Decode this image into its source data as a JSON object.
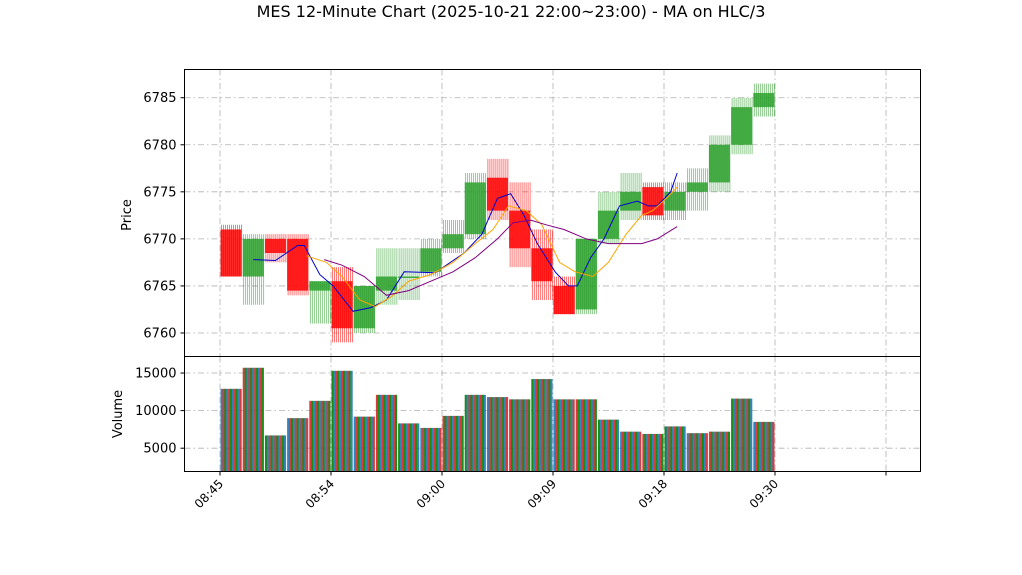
{
  "chart_data": {
    "type": "candlestick",
    "title": "MES 12-Minute Chart (2025-10-21 22:00~23:00) - MA on HLC/3",
    "price_panel": {
      "ylabel": "Price",
      "ylim": [
        6757.5,
        6788.0
      ],
      "yticks": [
        6760,
        6765,
        6770,
        6775,
        6780,
        6785
      ],
      "grid": true
    },
    "volume_panel": {
      "ylabel": "Volume",
      "ylim": [
        1900,
        17200
      ],
      "yticks": [
        5000,
        10000,
        15000
      ],
      "grid": true
    },
    "x_ticks": [
      "08:45",
      "08:54",
      "09:00",
      "09:09",
      "09:18",
      "09:30",
      ""
    ],
    "up_color": "#2ca02c",
    "down_color": "#ff0000",
    "volume_colors": [
      "#1f77b4",
      "#d62728",
      "#008000"
    ],
    "candles": [
      {
        "open": 6771.0,
        "high": 6771.5,
        "low": 6766.0,
        "close": 6766.0,
        "volume": 12900
      },
      {
        "open": 6766.0,
        "high": 6770.5,
        "low": 6763.0,
        "close": 6770.0,
        "volume": 15700
      },
      {
        "open": 6770.0,
        "high": 6770.5,
        "low": 6767.5,
        "close": 6768.5,
        "volume": 6700
      },
      {
        "open": 6770.0,
        "high": 6770.5,
        "low": 6764.0,
        "close": 6764.5,
        "volume": 9000
      },
      {
        "open": 6764.5,
        "high": 6765.5,
        "low": 6761.0,
        "close": 6765.5,
        "volume": 11300
      },
      {
        "open": 6765.5,
        "high": 6767.0,
        "low": 6759.0,
        "close": 6760.5,
        "volume": 15300
      },
      {
        "open": 6760.5,
        "high": 6765.0,
        "low": 6760.0,
        "close": 6765.0,
        "volume": 9200
      },
      {
        "open": 6764.5,
        "high": 6769.0,
        "low": 6763.0,
        "close": 6766.0,
        "volume": 12100
      },
      {
        "open": 6766.0,
        "high": 6769.0,
        "low": 6763.5,
        "close": 6766.0,
        "volume": 8300
      },
      {
        "open": 6766.5,
        "high": 6770.0,
        "low": 6766.0,
        "close": 6769.0,
        "volume": 7700
      },
      {
        "open": 6769.0,
        "high": 6772.0,
        "low": 6768.5,
        "close": 6770.5,
        "volume": 9300
      },
      {
        "open": 6770.5,
        "high": 6777.0,
        "low": 6770.0,
        "close": 6776.0,
        "volume": 12100
      },
      {
        "open": 6776.5,
        "high": 6778.5,
        "low": 6772.0,
        "close": 6773.0,
        "volume": 11800
      },
      {
        "open": 6773.0,
        "high": 6776.0,
        "low": 6767.0,
        "close": 6769.0,
        "volume": 11500
      },
      {
        "open": 6769.0,
        "high": 6771.0,
        "low": 6763.5,
        "close": 6765.5,
        "volume": 14200
      },
      {
        "open": 6765.0,
        "high": 6766.0,
        "low": 6762.0,
        "close": 6762.0,
        "volume": 11500
      },
      {
        "open": 6762.5,
        "high": 6770.0,
        "low": 6762.0,
        "close": 6770.0,
        "volume": 11500
      },
      {
        "open": 6770.0,
        "high": 6775.0,
        "low": 6769.5,
        "close": 6773.0,
        "volume": 8800
      },
      {
        "open": 6773.0,
        "high": 6777.0,
        "low": 6772.0,
        "close": 6775.0,
        "volume": 7200
      },
      {
        "open": 6775.5,
        "high": 6776.0,
        "low": 6772.0,
        "close": 6772.5,
        "volume": 6900
      },
      {
        "open": 6773.0,
        "high": 6776.0,
        "low": 6772.0,
        "close": 6775.0,
        "volume": 7900
      },
      {
        "open": 6775.0,
        "high": 6777.5,
        "low": 6773.0,
        "close": 6776.0,
        "volume": 7000
      },
      {
        "open": 6776.0,
        "high": 6781.0,
        "low": 6775.0,
        "close": 6780.0,
        "volume": 7200
      },
      {
        "open": 6780.0,
        "high": 6785.0,
        "low": 6779.0,
        "close": 6784.0,
        "volume": 11600
      },
      {
        "open": 6784.0,
        "high": 6786.5,
        "low": 6783.0,
        "close": 6785.5,
        "volume": 8500
      }
    ],
    "moving_averages": [
      {
        "color": "#0000cd",
        "points": [
          {
            "i": 1,
            "y": 6767.8
          },
          {
            "i": 2,
            "y": 6767.7
          },
          {
            "i": 3,
            "y": 6769.3
          },
          {
            "i": 3.3,
            "y": 6769.3
          },
          {
            "i": 4,
            "y": 6766.2
          },
          {
            "i": 4.6,
            "y": 6765.0
          },
          {
            "i": 5.5,
            "y": 6762.3
          },
          {
            "i": 6.3,
            "y": 6762.7
          },
          {
            "i": 7,
            "y": 6763.5
          },
          {
            "i": 7.8,
            "y": 6766.5
          },
          {
            "i": 9.2,
            "y": 6766.4
          },
          {
            "i": 10.5,
            "y": 6768.5
          },
          {
            "i": 11.3,
            "y": 6770.5
          },
          {
            "i": 12.0,
            "y": 6774.3
          },
          {
            "i": 12.6,
            "y": 6774.8
          },
          {
            "i": 13.2,
            "y": 6772.5
          },
          {
            "i": 13.8,
            "y": 6769.5
          },
          {
            "i": 14.6,
            "y": 6766.5
          },
          {
            "i": 15.2,
            "y": 6765.0
          },
          {
            "i": 15.6,
            "y": 6765.0
          },
          {
            "i": 16.2,
            "y": 6768.0
          },
          {
            "i": 16.8,
            "y": 6770.0
          },
          {
            "i": 17.5,
            "y": 6773.5
          },
          {
            "i": 18.3,
            "y": 6774.0
          },
          {
            "i": 18.8,
            "y": 6773.5
          },
          {
            "i": 19.2,
            "y": 6773.5
          },
          {
            "i": 19.8,
            "y": 6775.0
          },
          {
            "i": 20.1,
            "y": 6777.0
          }
        ]
      },
      {
        "color": "#ffa500",
        "points": [
          {
            "i": 3.4,
            "y": 6768.2
          },
          {
            "i": 4.3,
            "y": 6767.5
          },
          {
            "i": 5.0,
            "y": 6766.0
          },
          {
            "i": 5.8,
            "y": 6763.5
          },
          {
            "i": 6.5,
            "y": 6762.8
          },
          {
            "i": 7.3,
            "y": 6764.0
          },
          {
            "i": 8.0,
            "y": 6765.5
          },
          {
            "i": 9.0,
            "y": 6766.2
          },
          {
            "i": 10.0,
            "y": 6767.5
          },
          {
            "i": 11.0,
            "y": 6769.5
          },
          {
            "i": 11.8,
            "y": 6771.0
          },
          {
            "i": 12.5,
            "y": 6773.5
          },
          {
            "i": 13.3,
            "y": 6773.0
          },
          {
            "i": 14.0,
            "y": 6771.5
          },
          {
            "i": 14.8,
            "y": 6767.5
          },
          {
            "i": 15.5,
            "y": 6766.5
          },
          {
            "i": 16.3,
            "y": 6766.0
          },
          {
            "i": 17.0,
            "y": 6767.5
          },
          {
            "i": 17.8,
            "y": 6770.5
          },
          {
            "i": 18.5,
            "y": 6772.5
          },
          {
            "i": 19.0,
            "y": 6773.0
          },
          {
            "i": 19.7,
            "y": 6774.5
          },
          {
            "i": 20.1,
            "y": 6775.5
          }
        ]
      },
      {
        "color": "#800080",
        "points": [
          {
            "i": 4.2,
            "y": 6767.8
          },
          {
            "i": 5.0,
            "y": 6767.2
          },
          {
            "i": 6.0,
            "y": 6766.0
          },
          {
            "i": 7.0,
            "y": 6764.0
          },
          {
            "i": 8.0,
            "y": 6764.5
          },
          {
            "i": 9.0,
            "y": 6765.5
          },
          {
            "i": 10.0,
            "y": 6766.5
          },
          {
            "i": 11.0,
            "y": 6768.0
          },
          {
            "i": 12.0,
            "y": 6770.0
          },
          {
            "i": 12.7,
            "y": 6771.7
          },
          {
            "i": 13.5,
            "y": 6772.0
          },
          {
            "i": 14.2,
            "y": 6771.5
          },
          {
            "i": 15.0,
            "y": 6771.0
          },
          {
            "i": 16.0,
            "y": 6770.0
          },
          {
            "i": 17.0,
            "y": 6769.5
          },
          {
            "i": 17.8,
            "y": 6769.5
          },
          {
            "i": 18.5,
            "y": 6769.5
          },
          {
            "i": 19.2,
            "y": 6770.0
          },
          {
            "i": 20.1,
            "y": 6771.3
          }
        ]
      }
    ]
  }
}
